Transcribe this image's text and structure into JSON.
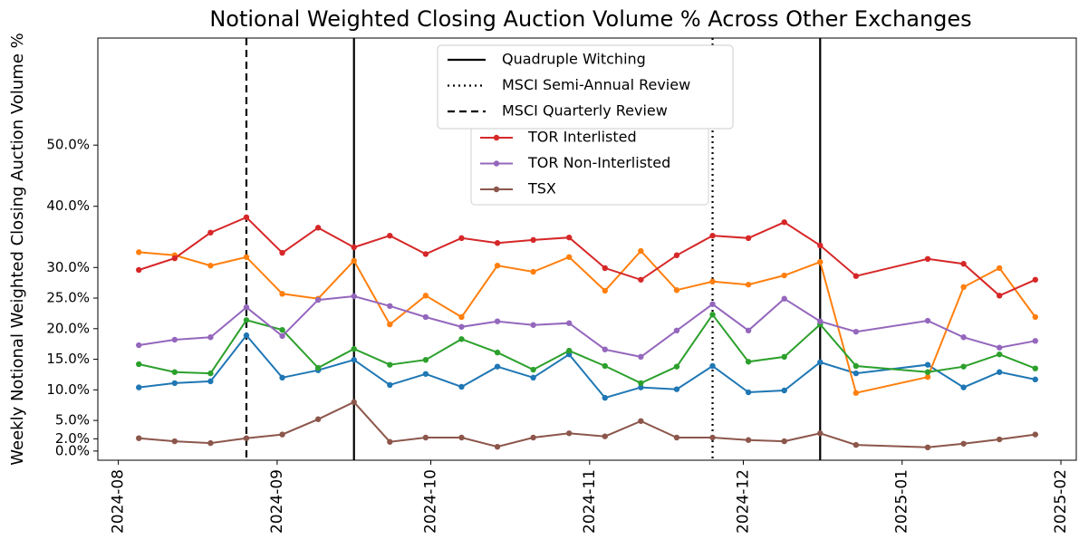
{
  "chart_data": {
    "type": "line",
    "title": "Notional Weighted Closing Auction Volume % Across Other Exchanges",
    "ylabel": "Weekly Notional Weighted Closing Auction Volume %",
    "x": [
      "2024-08-05",
      "2024-08-12",
      "2024-08-19",
      "2024-08-26",
      "2024-09-02",
      "2024-09-09",
      "2024-09-16",
      "2024-09-23",
      "2024-09-30",
      "2024-10-07",
      "2024-10-14",
      "2024-10-21",
      "2024-10-28",
      "2024-11-04",
      "2024-11-11",
      "2024-11-18",
      "2024-11-25",
      "2024-12-02",
      "2024-12-09",
      "2024-12-16",
      "2024-12-23",
      "2025-01-06",
      "2025-01-13",
      "2025-01-20",
      "2025-01-27"
    ],
    "xlim": [
      "2024-07-28",
      "2025-02-04"
    ],
    "xticks": [
      "2024-08",
      "2024-09",
      "2024-10",
      "2024-11",
      "2024-12",
      "2025-01",
      "2025-02"
    ],
    "ylim": [
      -1.5,
      67.5
    ],
    "yticks": [
      {
        "value": 0,
        "label": "0.0%"
      },
      {
        "value": 2,
        "label": "2.0%"
      },
      {
        "value": 5,
        "label": "5.0%"
      },
      {
        "value": 10,
        "label": "10.0%"
      },
      {
        "value": 15,
        "label": "15.0%"
      },
      {
        "value": 20,
        "label": "20.0%"
      },
      {
        "value": 25,
        "label": "25.0%"
      },
      {
        "value": 30,
        "label": "30.0%"
      },
      {
        "value": 40,
        "label": "40.0%"
      },
      {
        "value": 50,
        "label": "50.0%"
      }
    ],
    "grid": false,
    "series": [
      {
        "color": "#1f77b4",
        "values": [
          10.4,
          11.1,
          11.4,
          18.9,
          12.0,
          13.2,
          14.9,
          10.8,
          12.6,
          10.5,
          13.8,
          12.0,
          15.8,
          8.7,
          10.4,
          10.1,
          13.9,
          9.6,
          9.9,
          14.5,
          12.7,
          14.1,
          10.4,
          12.9,
          11.7
        ]
      },
      {
        "color": "#ff7f0e",
        "values": [
          32.5,
          32.0,
          30.3,
          31.7,
          25.7,
          24.9,
          31.1,
          20.7,
          25.4,
          21.9,
          30.3,
          29.3,
          31.7,
          26.2,
          32.7,
          26.3,
          27.7,
          27.2,
          28.7,
          30.9,
          9.5,
          12.1,
          26.8,
          29.9,
          21.9
        ]
      },
      {
        "color": "#2ca02c",
        "values": [
          14.2,
          12.9,
          12.7,
          21.4,
          19.8,
          13.6,
          16.7,
          14.1,
          14.9,
          18.3,
          16.1,
          13.3,
          16.4,
          13.9,
          11.1,
          13.8,
          22.3,
          14.6,
          15.4,
          20.7,
          13.9,
          12.9,
          13.8,
          15.8,
          13.5
        ]
      },
      {
        "name": "TOR Interlisted",
        "color": "#d62728",
        "values": [
          29.6,
          31.5,
          35.7,
          38.2,
          32.4,
          36.5,
          33.3,
          35.2,
          32.2,
          34.8,
          34.0,
          34.5,
          34.9,
          29.9,
          28.0,
          32.0,
          35.2,
          34.8,
          37.4,
          33.6,
          28.6,
          31.4,
          30.6,
          25.4,
          28.0
        ]
      },
      {
        "name": "TOR Non-Interlisted",
        "color": "#9467bd",
        "values": [
          17.3,
          18.2,
          18.6,
          23.5,
          18.8,
          24.7,
          25.3,
          23.7,
          21.9,
          20.3,
          21.2,
          20.6,
          20.9,
          16.6,
          15.4,
          19.7,
          24.0,
          19.7,
          24.9,
          21.2,
          19.5,
          21.3,
          18.6,
          16.9,
          18.0
        ]
      },
      {
        "name": "TSX",
        "color": "#8c564b",
        "values": [
          2.1,
          1.6,
          1.3,
          2.1,
          2.7,
          5.2,
          8.0,
          1.5,
          2.2,
          2.2,
          0.7,
          2.2,
          2.9,
          2.4,
          4.9,
          2.2,
          2.2,
          1.8,
          1.6,
          2.9,
          1.0,
          0.6,
          1.2,
          1.9,
          2.7
        ]
      }
    ],
    "events": [
      {
        "name": "Quadruple Witching",
        "style": "solid",
        "x": [
          "2024-09-16",
          "2024-12-16"
        ]
      },
      {
        "name": "MSCI Semi-Annual Review",
        "style": "dotted",
        "x": [
          "2024-11-25"
        ]
      },
      {
        "name": "MSCI Quarterly Review",
        "style": "dashed",
        "x": [
          "2024-08-26"
        ]
      }
    ]
  }
}
